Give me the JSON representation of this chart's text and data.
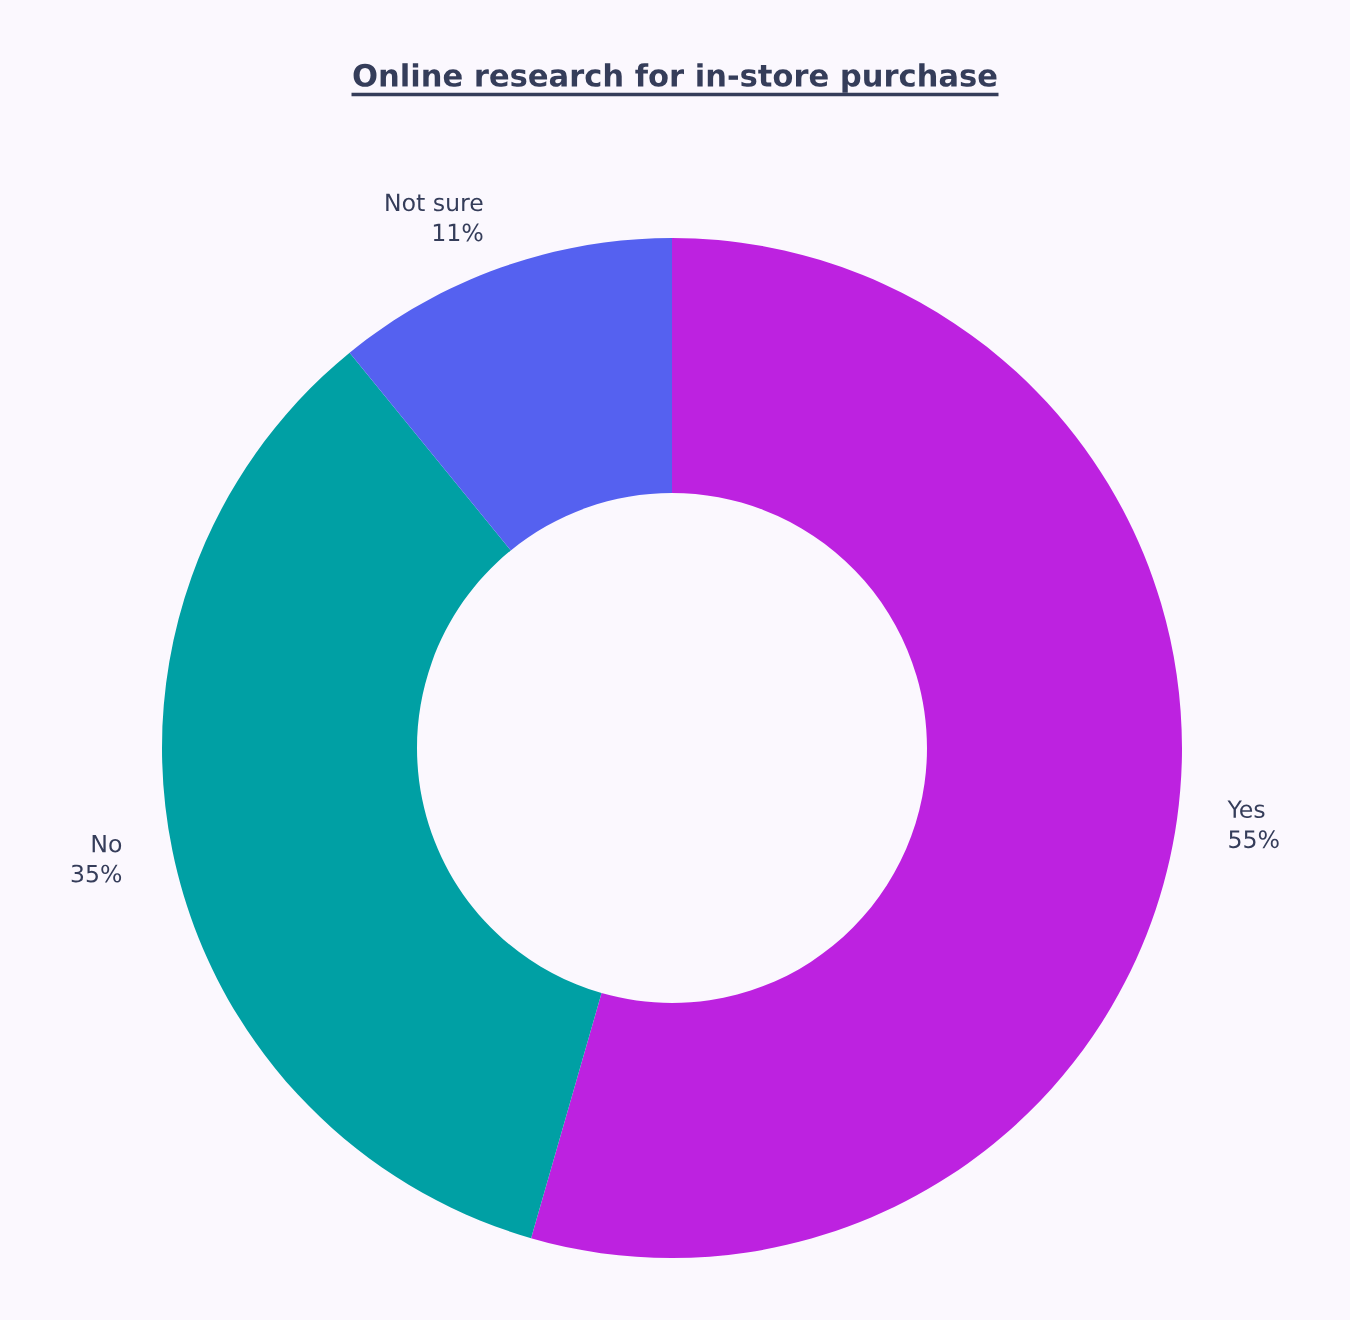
{
  "chart_data": {
    "type": "donut",
    "title": "Online research for in-store purchase",
    "categories": [
      "Yes",
      "No",
      "Not sure"
    ],
    "values": [
      55,
      35,
      11
    ],
    "value_labels": [
      "55%",
      "35%",
      "11%"
    ],
    "colors": [
      "#bd22e0",
      "#00a0a4",
      "#5561f0"
    ]
  }
}
